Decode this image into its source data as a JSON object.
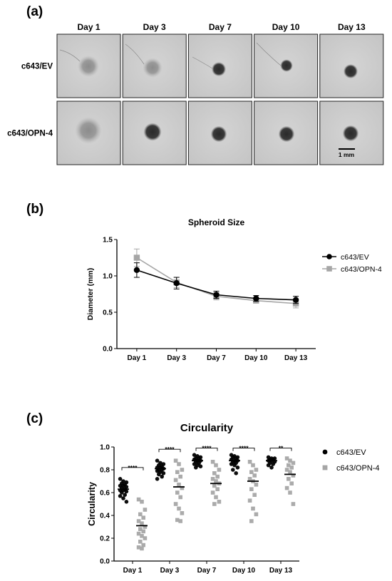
{
  "panels": {
    "a": "(a)",
    "b": "(b)",
    "c": "(c)"
  },
  "images_panel": {
    "column_labels": [
      "Day 1",
      "Day 3",
      "Day 7",
      "Day 10",
      "Day 13"
    ],
    "row_labels": [
      "c643/EV",
      "c643/OPN-4"
    ],
    "scale_bar_label": "1 mm"
  },
  "chart_data": [
    {
      "type": "line",
      "title": "Spheroid Size",
      "xlabel": "",
      "ylabel": "Diameter (mm)",
      "categories": [
        "Day 1",
        "Day 3",
        "Day 7",
        "Day 10",
        "Day 13"
      ],
      "ylim": [
        0,
        1.5
      ],
      "yticks": [
        "0.0",
        "0.5",
        "1.0",
        "1.5"
      ],
      "legend_position": "right",
      "series": [
        {
          "name": "c643/EV",
          "color": "#000000",
          "marker": "circle",
          "values": [
            1.08,
            0.9,
            0.74,
            0.69,
            0.67
          ],
          "errors": [
            0.1,
            0.08,
            0.05,
            0.04,
            0.05
          ]
        },
        {
          "name": "c643/OPN-4",
          "color": "#a6a6a6",
          "marker": "square",
          "values": [
            1.25,
            0.91,
            0.72,
            0.66,
            0.62
          ],
          "errors": [
            0.12,
            0.07,
            0.05,
            0.03,
            0.06
          ]
        }
      ]
    },
    {
      "type": "scatter",
      "title": "Circularity",
      "xlabel": "",
      "ylabel": "Circularity",
      "categories": [
        "Day 1",
        "Day 3",
        "Day 7",
        "Day 10",
        "Day 13"
      ],
      "ylim": [
        0,
        1.0
      ],
      "yticks": [
        "0.0",
        "0.2",
        "0.4",
        "0.6",
        "0.8",
        "1.0"
      ],
      "legend_position": "right",
      "significance": [
        "****",
        "****",
        "****",
        "****",
        "**"
      ],
      "series": [
        {
          "name": "c643/EV",
          "color": "#000000",
          "marker": "circle",
          "means": [
            0.63,
            0.81,
            0.88,
            0.88,
            0.88
          ],
          "points": [
            [
              0.72,
              0.7,
              0.69,
              0.68,
              0.67,
              0.66,
              0.66,
              0.65,
              0.64,
              0.63,
              0.62,
              0.62,
              0.61,
              0.6,
              0.58,
              0.57,
              0.55,
              0.52
            ],
            [
              0.88,
              0.86,
              0.85,
              0.84,
              0.83,
              0.82,
              0.82,
              0.81,
              0.8,
              0.8,
              0.79,
              0.78,
              0.77,
              0.76,
              0.74,
              0.72
            ],
            [
              0.93,
              0.92,
              0.91,
              0.9,
              0.9,
              0.89,
              0.88,
              0.88,
              0.87,
              0.86,
              0.85,
              0.84,
              0.83,
              0.82
            ],
            [
              0.93,
              0.92,
              0.91,
              0.91,
              0.9,
              0.89,
              0.88,
              0.88,
              0.87,
              0.86,
              0.85,
              0.84,
              0.82,
              0.8,
              0.77
            ],
            [
              0.91,
              0.9,
              0.9,
              0.89,
              0.89,
              0.88,
              0.88,
              0.87,
              0.86,
              0.85,
              0.84,
              0.82
            ]
          ]
        },
        {
          "name": "c643/OPN-4",
          "color": "#a6a6a6",
          "marker": "square",
          "means": [
            0.31,
            0.65,
            0.68,
            0.7,
            0.76
          ],
          "points": [
            [
              0.54,
              0.52,
              0.45,
              0.41,
              0.38,
              0.35,
              0.33,
              0.3,
              0.28,
              0.26,
              0.24,
              0.22,
              0.2,
              0.17,
              0.14,
              0.12,
              0.11
            ],
            [
              0.88,
              0.85,
              0.8,
              0.78,
              0.74,
              0.71,
              0.67,
              0.64,
              0.6,
              0.56,
              0.5,
              0.46,
              0.42,
              0.36,
              0.35
            ],
            [
              0.87,
              0.84,
              0.8,
              0.77,
              0.74,
              0.72,
              0.7,
              0.68,
              0.66,
              0.63,
              0.6,
              0.56,
              0.52,
              0.5
            ],
            [
              0.87,
              0.84,
              0.8,
              0.78,
              0.75,
              0.72,
              0.7,
              0.67,
              0.63,
              0.58,
              0.53,
              0.46,
              0.41,
              0.35
            ],
            [
              0.9,
              0.88,
              0.86,
              0.84,
              0.82,
              0.8,
              0.78,
              0.75,
              0.72,
              0.68,
              0.64,
              0.6,
              0.5
            ]
          ]
        }
      ]
    }
  ]
}
